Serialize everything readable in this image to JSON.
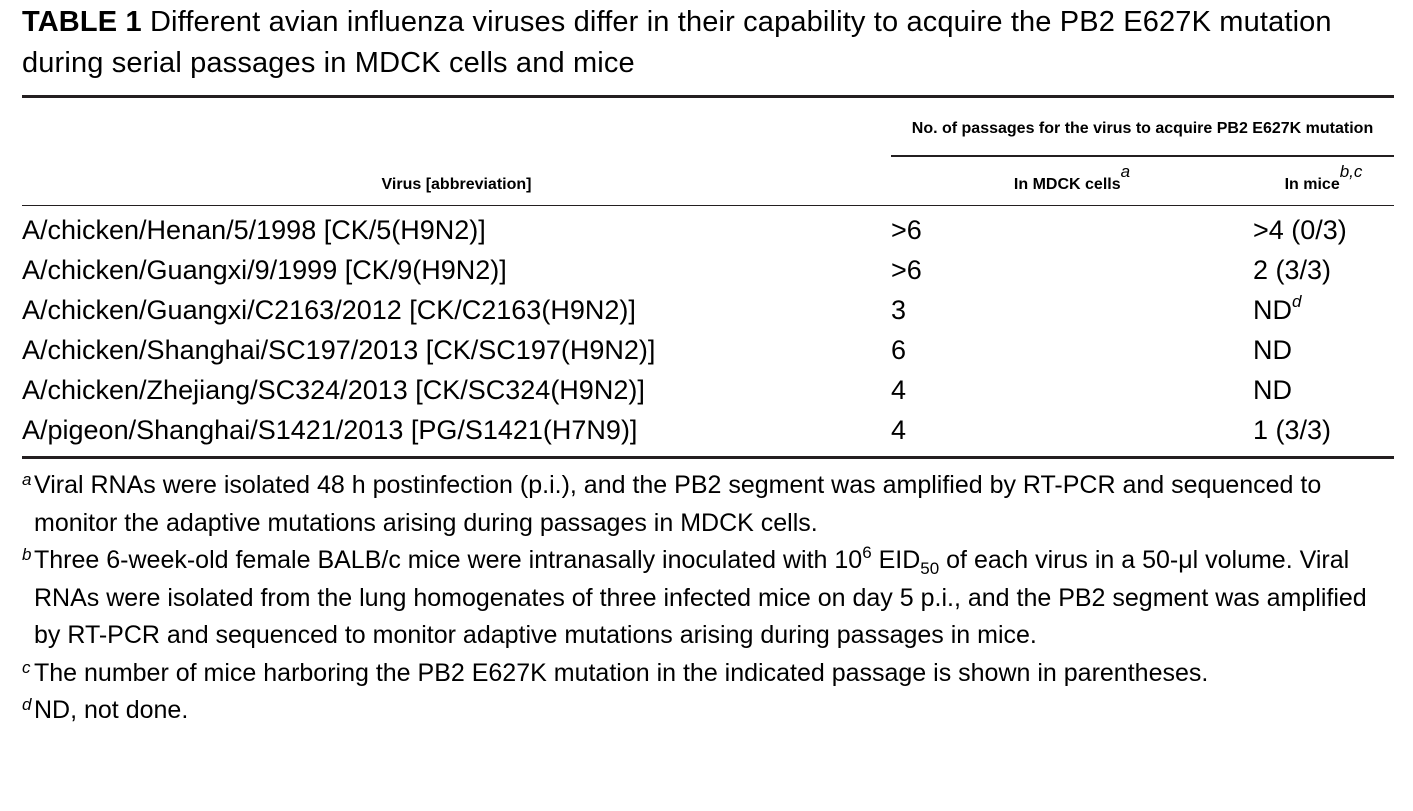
{
  "caption": {
    "label": "TABLE 1",
    "text": "Different avian influenza viruses differ in their capability to acquire the PB2 E627K mutation during serial passages in MDCK cells and mice"
  },
  "header": {
    "col1": "Virus [abbreviation]",
    "group": "No. of passages for the virus to acquire PB2 E627K mutation",
    "col2": "In MDCK cells",
    "col2_note": "a",
    "col3": "In mice",
    "col3_note": "b,c"
  },
  "rows": [
    {
      "virus": "A/chicken/Henan/5/1998 [CK/5(H9N2)]",
      "mdck": ">6",
      "mice": ">4 (0/3)",
      "mice_note": ""
    },
    {
      "virus": "A/chicken/Guangxi/9/1999 [CK/9(H9N2)]",
      "mdck": ">6",
      "mice": "2 (3/3)",
      "mice_note": ""
    },
    {
      "virus": "A/chicken/Guangxi/C2163/2012 [CK/C2163(H9N2)]",
      "mdck": "3",
      "mice": "ND",
      "mice_note": "d"
    },
    {
      "virus": "A/chicken/Shanghai/SC197/2013 [CK/SC197(H9N2)]",
      "mdck": "6",
      "mice": "ND",
      "mice_note": ""
    },
    {
      "virus": "A/chicken/Zhejiang/SC324/2013 [CK/SC324(H9N2)]",
      "mdck": "4",
      "mice": "ND",
      "mice_note": ""
    },
    {
      "virus": "A/pigeon/Shanghai/S1421/2013 [PG/S1421(H7N9)]",
      "mdck": "4",
      "mice": "1 (3/3)",
      "mice_note": ""
    }
  ],
  "footnotes": {
    "a": {
      "mark": "a",
      "text": "Viral RNAs were isolated 48 h postinfection (p.i.), and the PB2 segment was amplified by RT-PCR and sequenced to monitor the adaptive mutations arising during passages in MDCK cells."
    },
    "b": {
      "mark": "b",
      "text_pre": "Three 6-week-old female BALB/c mice were intranasally inoculated with 10",
      "exp": "6",
      "eid": " EID",
      "eid_sub": "50",
      "text_post": " of each virus in a 50-μl volume. Viral RNAs were isolated from the lung homogenates of three infected mice on day 5 p.i., and the PB2 segment was amplified by RT-PCR and sequenced to monitor adaptive mutations arising during passages in mice."
    },
    "c": {
      "mark": "c",
      "text": "The number of mice harboring the PB2 E627K mutation in the indicated passage is shown in parentheses."
    },
    "d": {
      "mark": "d",
      "text": "ND, not done."
    }
  }
}
